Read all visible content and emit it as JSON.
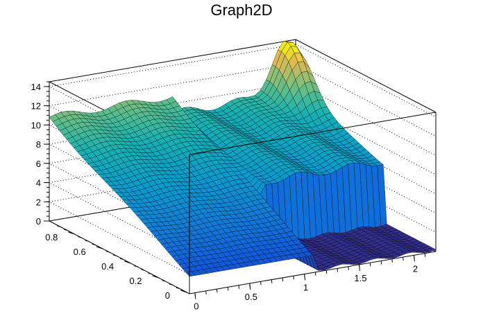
{
  "chart_data": {
    "type": "surface",
    "title": "Graph2D",
    "x": {
      "ticks": [
        0,
        0.5,
        1,
        1.5,
        2
      ],
      "tick_labels": [
        "0",
        "0.5",
        "1",
        "1.5",
        "2"
      ],
      "range": [
        -0.05,
        2.2
      ]
    },
    "y": {
      "ticks": [
        0,
        0.2,
        0.4,
        0.6,
        0.8
      ],
      "tick_labels": [
        "0",
        "0.2",
        "0.4",
        "0.6",
        "0.8"
      ],
      "range": [
        -0.02,
        0.98
      ]
    },
    "z": {
      "ticks": [
        0,
        2,
        4,
        6,
        8,
        10,
        12,
        14
      ],
      "tick_labels": [
        "0",
        "2",
        "4",
        "6",
        "8",
        "10",
        "12",
        "14"
      ],
      "range": [
        0,
        14.5
      ]
    },
    "surface": {
      "description_regions": [
        {
          "x": [
            -0.05,
            1.1
          ],
          "y": [
            -0.02,
            0.98
          ],
          "z_at_y_min": 1.8,
          "z_at_y_max": 10.8
        },
        {
          "x": [
            1.1,
            2.2
          ],
          "y": [
            -0.02,
            0.35
          ],
          "z": 0.2
        },
        {
          "x": [
            1.1,
            2.2
          ],
          "y": [
            0.35,
            0.98
          ],
          "z": "rises toward back, peak ~15 near x=2.1, y=0.95"
        }
      ]
    },
    "palette": "kBird",
    "grid": true
  }
}
